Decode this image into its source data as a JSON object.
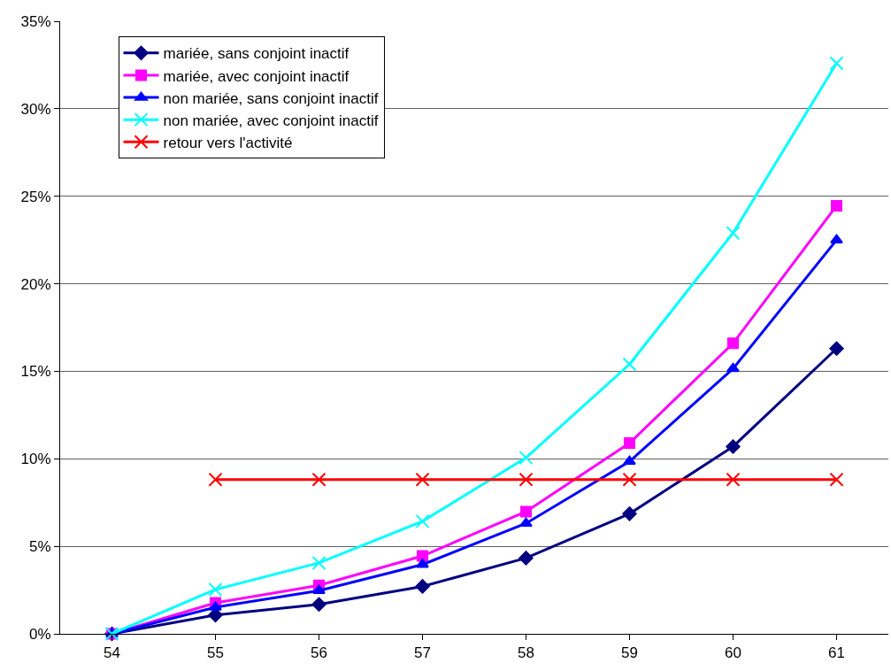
{
  "chart_data": {
    "type": "line",
    "categories": [
      "54",
      "55",
      "56",
      "57",
      "58",
      "59",
      "60",
      "61"
    ],
    "series": [
      {
        "name": "mariée, sans conjoint inactif",
        "color": "#000080",
        "marker": "diamond",
        "values": [
          0,
          1.07,
          1.68,
          2.71,
          4.33,
          6.86,
          10.7,
          16.3
        ]
      },
      {
        "name": "mariée, avec conjoint inactif",
        "color": "#ff00ff",
        "marker": "square",
        "values": [
          0,
          1.77,
          2.77,
          4.45,
          6.98,
          10.9,
          16.6,
          24.46
        ]
      },
      {
        "name": "non mariée, sans conjoint inactif",
        "color": "#0000ff",
        "marker": "triangle",
        "values": [
          0,
          1.52,
          2.47,
          3.96,
          6.31,
          9.85,
          15.15,
          22.5
        ]
      },
      {
        "name": "non mariée, avec conjoint inactif",
        "color": "#00ffff",
        "marker": "cross",
        "values": [
          0,
          2.53,
          4.05,
          6.43,
          10.06,
          15.4,
          22.9,
          32.6
        ]
      },
      {
        "name": "retour vers l'activité",
        "color": "#ff0000",
        "marker": "cross",
        "values": [
          null,
          8.81,
          8.81,
          8.81,
          8.81,
          8.81,
          8.81,
          8.81
        ]
      }
    ],
    "ylim": [
      0,
      35
    ],
    "yticks": [
      {
        "value": 0,
        "label": "0%"
      },
      {
        "value": 5,
        "label": "5%"
      },
      {
        "value": 10,
        "label": "10%"
      },
      {
        "value": 15,
        "label": "15%"
      },
      {
        "value": 20,
        "label": "20%"
      },
      {
        "value": 25,
        "label": "25%"
      },
      {
        "value": 30,
        "label": "30%"
      },
      {
        "value": 35,
        "label": "35%"
      }
    ],
    "grid": "y",
    "legend": "top left"
  }
}
